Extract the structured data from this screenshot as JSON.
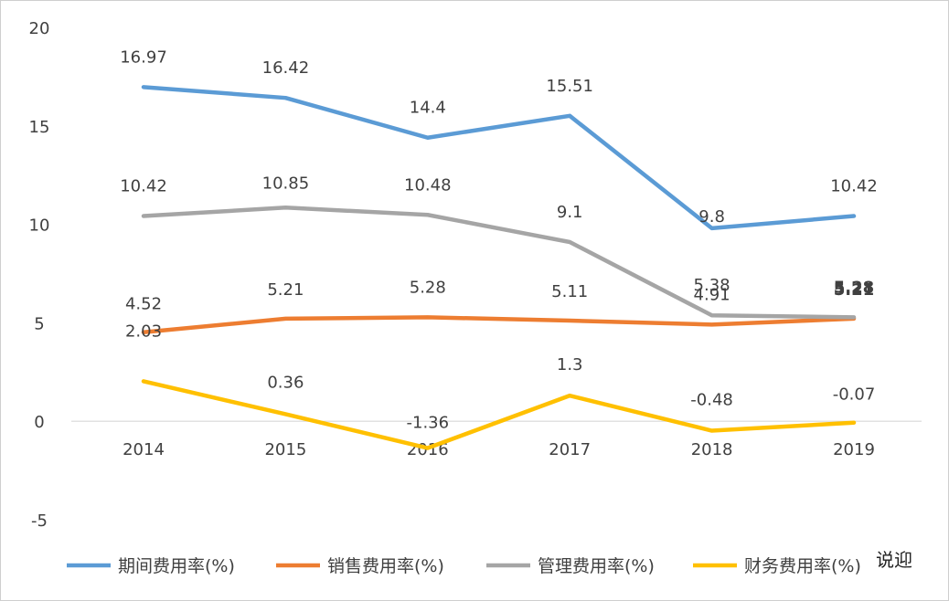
{
  "chart_data": {
    "type": "line",
    "categories": [
      "2014",
      "2015",
      "2016",
      "2017",
      "2018",
      "2019"
    ],
    "y_ticks": [
      "20",
      "15",
      "10",
      "5",
      "0",
      "-5"
    ],
    "ylim": [
      -5,
      20
    ],
    "grid": false,
    "legend_position": "bottom",
    "series": [
      {
        "name": "期间费用率(%)",
        "color": "#5b9bd5",
        "values": [
          16.97,
          16.42,
          14.4,
          15.51,
          9.8,
          10.42
        ],
        "labels": [
          "16.97",
          "16.42",
          "14.4",
          "15.51",
          "9.8",
          "10.42"
        ]
      },
      {
        "name": "销售费用率(%)",
        "color": "#ed7d31",
        "values": [
          4.52,
          5.21,
          5.28,
          5.11,
          4.91,
          5.21
        ],
        "labels": [
          "4.52",
          "5.21",
          "5.28",
          "5.11",
          "4.91",
          "5.21"
        ]
      },
      {
        "name": "管理费用率(%)",
        "color": "#a5a5a5",
        "values": [
          10.42,
          10.85,
          10.48,
          9.1,
          5.38,
          5.28
        ],
        "labels": [
          "10.42",
          "10.85",
          "10.48",
          "9.1",
          "5.38",
          "5.28"
        ]
      },
      {
        "name": "财务费用率(%)",
        "color": "#ffc000",
        "values": [
          2.03,
          0.36,
          -1.36,
          1.3,
          -0.48,
          -0.07
        ],
        "labels": [
          "2.03",
          "0.36",
          "-1.36",
          "1.3",
          "-0.48",
          "-0.07"
        ]
      }
    ],
    "watermark": "说迎"
  }
}
